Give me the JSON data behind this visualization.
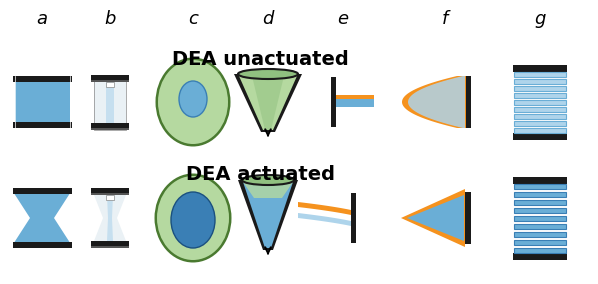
{
  "bg_color": "#ffffff",
  "blue_fill": "#6aaed6",
  "blue_light": "#aed4eb",
  "blue_dark": "#3a7fb5",
  "green_fill": "#b5d9a0",
  "green_light": "#d4ecbf",
  "orange_fill": "#f5921e",
  "black_fix": "#1a1a1a",
  "gray_cyl": "#c8d8e0",
  "gray_light": "#e8f0f4",
  "title1": "DEA unactuated",
  "title2": "DEA actuated",
  "labels": [
    "a",
    "b",
    "c",
    "d",
    "e",
    "f",
    "g"
  ],
  "label_fontsize": 13,
  "title_fontsize": 14
}
